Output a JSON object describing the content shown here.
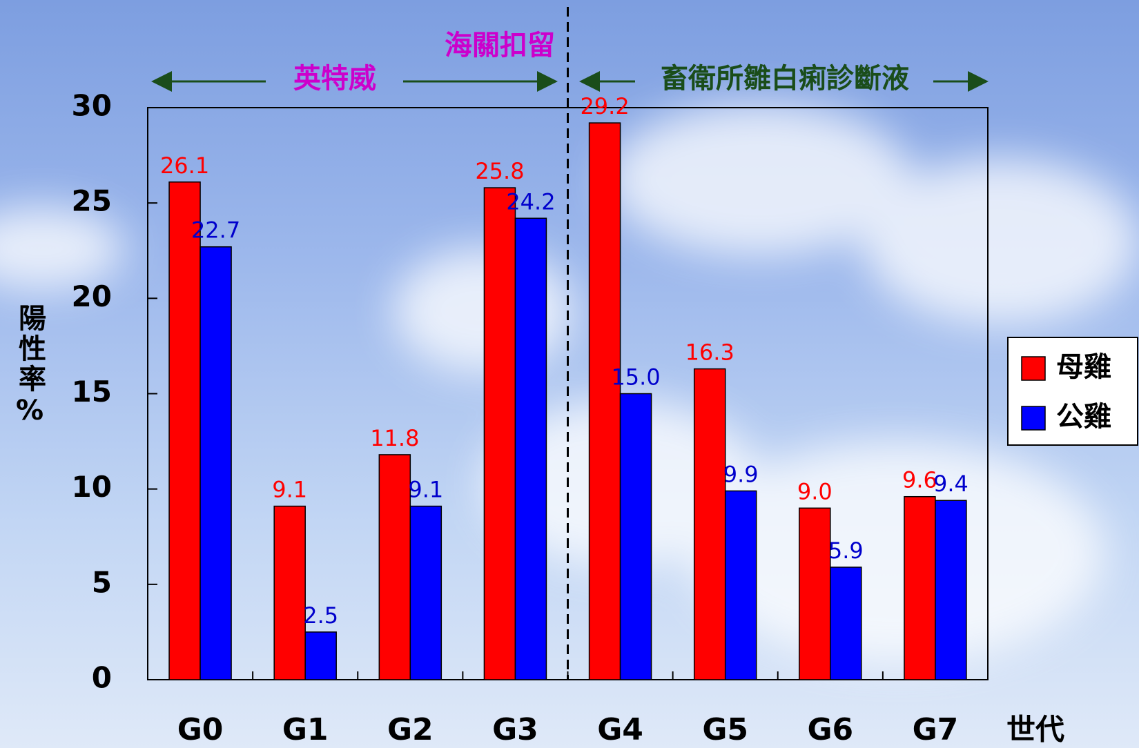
{
  "chart_data": {
    "type": "bar",
    "categories": [
      "G0",
      "G1",
      "G2",
      "G3",
      "G4",
      "G5",
      "G6",
      "G7"
    ],
    "series": [
      {
        "name": "母雞",
        "color": "#ff0000",
        "values": [
          26.1,
          9.1,
          11.8,
          25.8,
          29.2,
          16.3,
          9.0,
          9.6
        ],
        "value_labels": [
          "26.1",
          "9.1",
          "11.8",
          "25.8",
          "29.2",
          "16.3",
          "9.0",
          "9.6"
        ]
      },
      {
        "name": "公雞",
        "color": "#0000ff",
        "values": [
          22.7,
          2.5,
          9.1,
          24.2,
          15.0,
          9.9,
          5.9,
          9.4
        ],
        "value_labels": [
          "22.7",
          "2.5",
          "9.1",
          "24.2",
          "15.0",
          "9.9",
          "5.9",
          "9.4"
        ]
      }
    ],
    "ylim": [
      0,
      30
    ],
    "yticks": [
      0,
      5,
      10,
      15,
      20,
      25,
      30
    ],
    "x_label": "世代",
    "y_label": "陽性率%",
    "annotations": [
      "英特威",
      "海關扣留",
      "畜衛所雛白痢診斷液"
    ],
    "legend": "right"
  }
}
